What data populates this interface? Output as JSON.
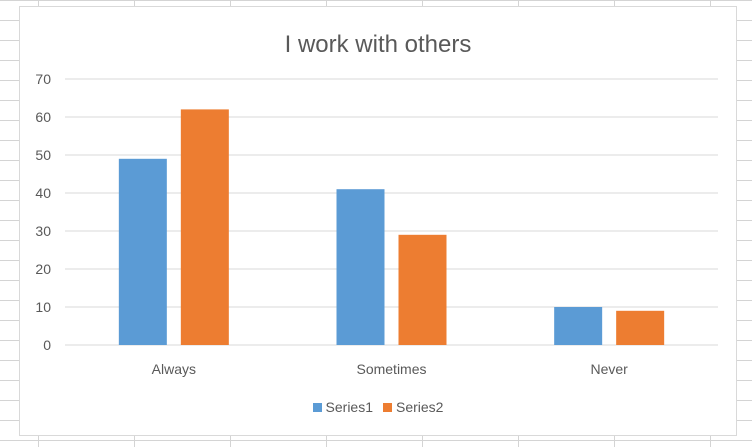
{
  "chart_data": {
    "type": "bar",
    "title": "I work with others",
    "categories": [
      "Always",
      "Sometimes",
      "Never"
    ],
    "series": [
      {
        "name": "Series1",
        "values": [
          49,
          41,
          10
        ],
        "color": "#5b9bd5"
      },
      {
        "name": "Series2",
        "values": [
          62,
          29,
          9
        ],
        "color": "#ed7d31"
      }
    ],
    "xlabel": "",
    "ylabel": "",
    "ylim": [
      0,
      70
    ],
    "yticks": [
      0,
      10,
      20,
      30,
      40,
      50,
      60,
      70
    ],
    "grid": true,
    "gridline_color": "#d9d9d9",
    "legend_position": "bottom"
  }
}
